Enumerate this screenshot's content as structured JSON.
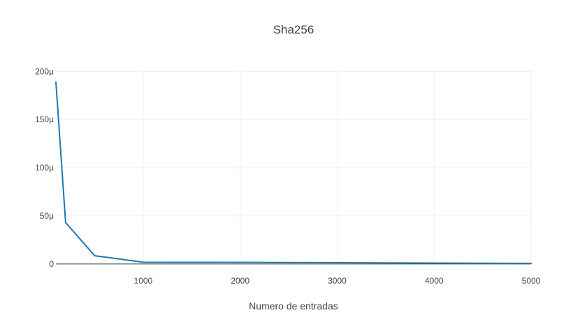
{
  "chart_data": {
    "type": "line",
    "title": "Sha256",
    "xlabel": "Numero de entradas",
    "ylabel": "",
    "xlim": [
      100,
      5000
    ],
    "ylim": [
      -1e-07,
      0.000201
    ],
    "x_ticks": [
      1000,
      2000,
      3000,
      4000,
      5000
    ],
    "x_tick_labels": [
      "1000",
      "2000",
      "3000",
      "4000",
      "5000"
    ],
    "y_ticks": [
      0,
      5e-05,
      0.0001,
      0.00015,
      0.0002
    ],
    "y_tick_labels": [
      "0",
      "50μ",
      "100μ",
      "150μ",
      "200μ"
    ],
    "grid": true,
    "series": [
      {
        "color": "#1f77b4",
        "x": [
          100,
          200,
          500,
          1000,
          1600,
          2200,
          2800,
          3400,
          4000,
          4500,
          5000
        ],
        "y": [
          0.000189,
          4.3e-05,
          8.5e-06,
          1.8e-06,
          1.7e-06,
          1.6e-06,
          1.4e-06,
          1.2e-06,
          9e-07,
          7e-07,
          5e-07
        ]
      }
    ]
  }
}
